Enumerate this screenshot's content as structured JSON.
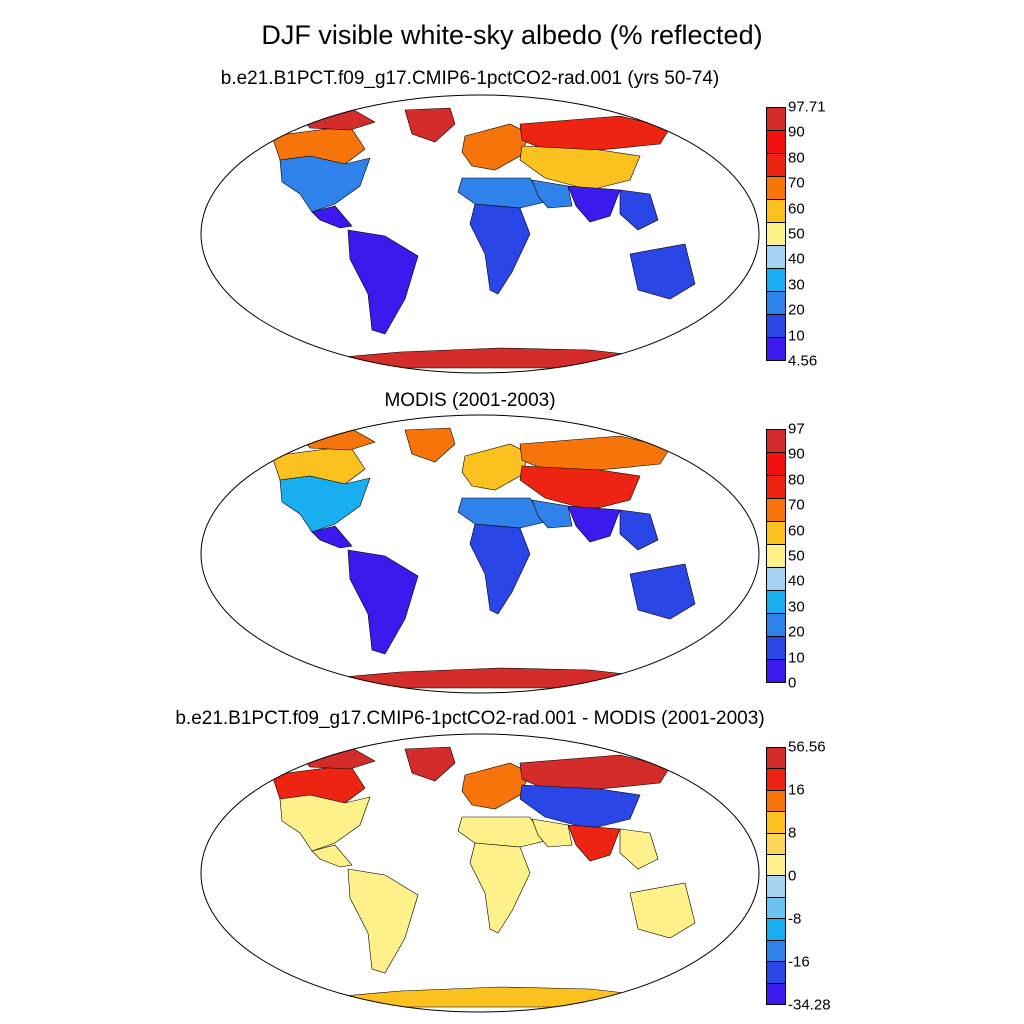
{
  "figure": {
    "title": "DJF visible white-sky albedo (% reflected)"
  },
  "colors": {
    "land_outline": "#000000",
    "map_border": "#000000"
  },
  "panels": [
    {
      "id": "model",
      "title": "b.e21.B1PCT.f09_g17.CMIP6-1pctCO2-rad.001 (yrs 50-74)",
      "colorbar": {
        "labels": [
          "4.56",
          "10",
          "20",
          "30",
          "40",
          "50",
          "60",
          "70",
          "80",
          "90",
          "97.71"
        ],
        "colors": [
          "#3c1aee",
          "#2a46e6",
          "#2f82ea",
          "#18aef0",
          "#a6d3f1",
          "#fff18a",
          "#fbc11f",
          "#f7740a",
          "#ee2412",
          "#f3100e",
          "#d42c2a"
        ]
      },
      "region_colors": {
        "north_america": "#2f82ea",
        "canada_north": "#f7740a",
        "arctic_islands": "#d42c2a",
        "greenland": "#d42c2a",
        "central_america": "#3c1aee",
        "south_america": "#3c1aee",
        "europe": "#f7740a",
        "north_africa": "#2f82ea",
        "africa": "#2a46e6",
        "siberia": "#ee2412",
        "central_asia": "#fbc11f",
        "middle_east": "#2f82ea",
        "south_asia": "#3c1aee",
        "southeast_asia": "#2a46e6",
        "australia": "#2a46e6",
        "antarctica": "#d42c2a"
      }
    },
    {
      "id": "obs",
      "title": "MODIS (2001-2003)",
      "colorbar": {
        "labels": [
          "0",
          "10",
          "20",
          "30",
          "40",
          "50",
          "60",
          "70",
          "80",
          "90",
          "97"
        ],
        "colors": [
          "#3c1aee",
          "#2a46e6",
          "#2f82ea",
          "#18aef0",
          "#a6d3f1",
          "#fff18a",
          "#fbc11f",
          "#f7740a",
          "#ee2412",
          "#f3100e",
          "#d42c2a"
        ]
      },
      "region_colors": {
        "north_america": "#18aef0",
        "canada_north": "#fbc11f",
        "arctic_islands": "#f7740a",
        "greenland": "#f7740a",
        "central_america": "#3c1aee",
        "south_america": "#3c1aee",
        "europe": "#fbc11f",
        "north_africa": "#2f82ea",
        "africa": "#2a46e6",
        "siberia": "#f7740a",
        "central_asia": "#ee2412",
        "middle_east": "#2f82ea",
        "south_asia": "#3c1aee",
        "southeast_asia": "#2a46e6",
        "australia": "#2a46e6",
        "antarctica": "#d42c2a"
      }
    },
    {
      "id": "diff",
      "title": "b.e21.B1PCT.f09_g17.CMIP6-1pctCO2-rad.001 - MODIS (2001-2003)",
      "colorbar": {
        "labels": [
          "-34.28",
          "",
          "-16",
          "",
          "-8",
          "",
          "0",
          "",
          "8",
          "",
          "16",
          "",
          "56.56"
        ],
        "colors": [
          "#3c1aee",
          "#2a46e6",
          "#2f82ea",
          "#18aef0",
          "#6cc2f0",
          "#a6d3f1",
          "#fff18a",
          "#fbd55a",
          "#fbc11f",
          "#f7740a",
          "#ee2412",
          "#d42c2a"
        ]
      },
      "region_colors": {
        "north_america": "#fff18a",
        "canada_north": "#ee2412",
        "arctic_islands": "#d42c2a",
        "greenland": "#d42c2a",
        "central_america": "#fff18a",
        "south_america": "#fff18a",
        "europe": "#f7740a",
        "north_africa": "#fff18a",
        "africa": "#fff18a",
        "siberia": "#d42c2a",
        "central_asia": "#2a46e6",
        "middle_east": "#fff18a",
        "south_asia": "#ee2412",
        "southeast_asia": "#fff18a",
        "australia": "#fff18a",
        "antarctica": "#fbc11f"
      }
    }
  ]
}
